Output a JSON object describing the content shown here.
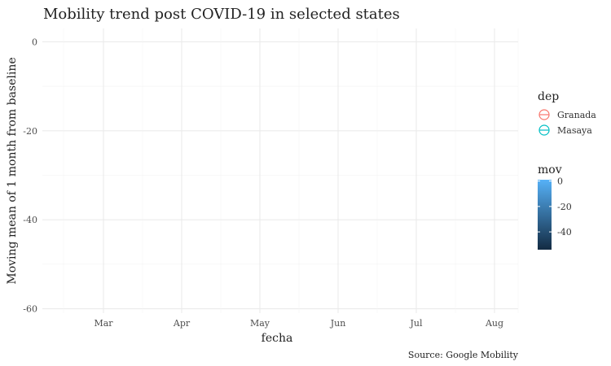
{
  "chart_data": {
    "type": "line",
    "title": "Mobility trend post COVID-19 in selected states",
    "xlabel": "fecha",
    "ylabel": "Moving mean of 1 month from baseline",
    "caption": "Source: Google Mobility",
    "x_ticks": [
      "Mar",
      "Apr",
      "May",
      "Jun",
      "Jul",
      "Aug"
    ],
    "y_ticks": [
      0,
      -20,
      -40,
      -60
    ],
    "ylim": [
      -61,
      3
    ],
    "grid": true,
    "series": [
      {
        "name": "Granada",
        "color": "#F8766D",
        "values": []
      },
      {
        "name": "Masaya",
        "color": "#00BFC4",
        "values": []
      }
    ],
    "legend": {
      "position": "right",
      "color_title": "dep",
      "fill_title": "mov",
      "fill_ticks": [
        0,
        -20,
        -40
      ],
      "fill_range": [
        -54,
        1
      ],
      "fill_colors": [
        "#132B43",
        "#56B1F7"
      ]
    }
  }
}
